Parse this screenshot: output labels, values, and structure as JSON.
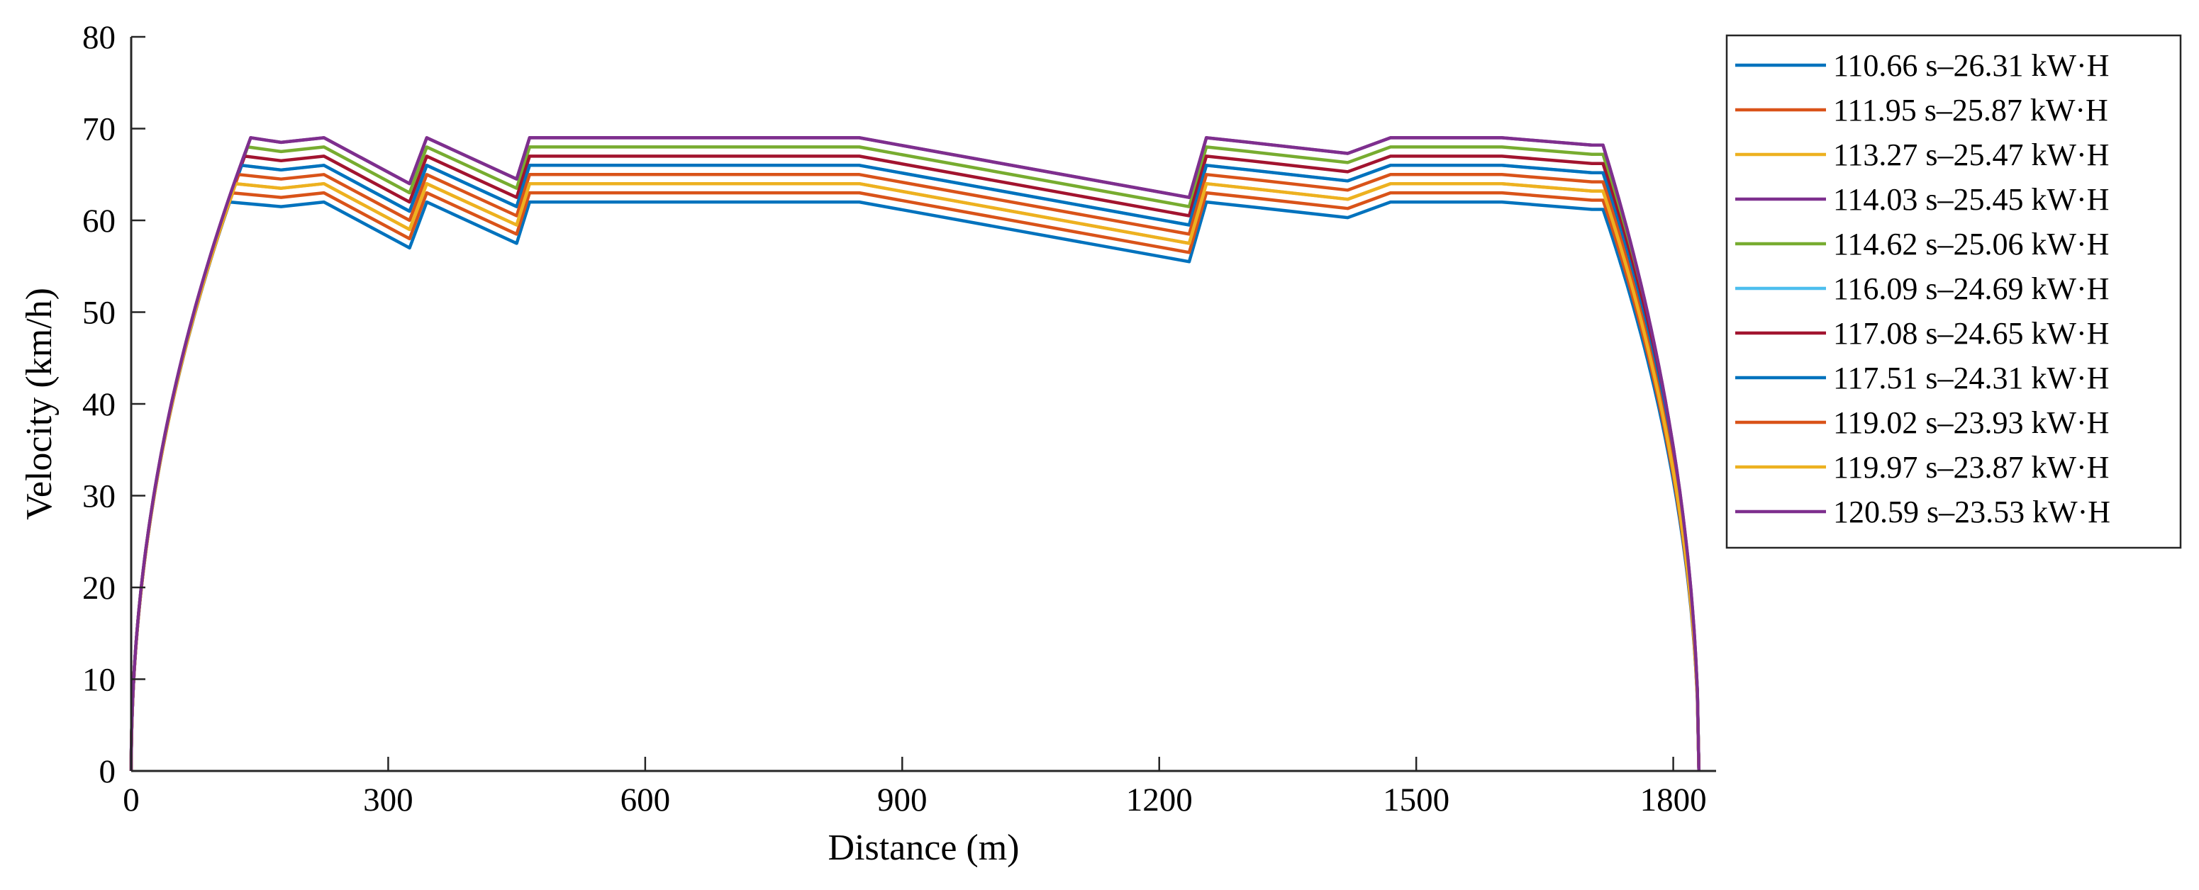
{
  "chart_data": {
    "type": "line",
    "title": "",
    "xlabel": "Distance (m)",
    "ylabel": "Velocity (km/h)",
    "xlim": [
      0,
      1850
    ],
    "ylim": [
      0,
      80
    ],
    "xticks": [
      0,
      300,
      600,
      900,
      1200,
      1500,
      1800
    ],
    "yticks": [
      0,
      10,
      20,
      30,
      40,
      50,
      60,
      70,
      80
    ],
    "xtick_labels": [
      "0",
      "300",
      "600",
      "900",
      "1200",
      "1500",
      "1800"
    ],
    "ytick_labels": [
      "0",
      "10",
      "20",
      "30",
      "40",
      "50",
      "60",
      "70",
      "80"
    ],
    "grid": false,
    "legend_position": "outside-right-top",
    "series": [
      {
        "name": "110.66 s–26.31 kW·H",
        "color": "#0072BD",
        "cruise": 62
      },
      {
        "name": "111.95 s–25.87 kW·H",
        "color": "#D95319",
        "cruise": 63
      },
      {
        "name": "113.27 s–25.47 kW·H",
        "color": "#EDB120",
        "cruise": 64
      },
      {
        "name": "114.03 s–25.45 kW·H",
        "color": "#7E2F8E",
        "cruise": 69
      },
      {
        "name": "114.62 s–25.06 kW·H",
        "color": "#77AC30",
        "cruise": 68
      },
      {
        "name": "116.09 s–24.69 kW·H",
        "color": "#4DBEEE",
        "cruise": 66
      },
      {
        "name": "117.08 s–24.65 kW·H",
        "color": "#A2142F",
        "cruise": 67
      },
      {
        "name": "117.51 s–24.31 kW·H",
        "color": "#0072BD",
        "cruise": 66
      },
      {
        "name": "119.02 s–23.93 kW·H",
        "color": "#D95319",
        "cruise": 65
      },
      {
        "name": "119.97 s–23.87 kW·H",
        "color": "#EDB120",
        "cruise": 64
      },
      {
        "name": "120.59 s–23.53 kW·H",
        "color": "#7E2F8E",
        "cruise": 69
      }
    ],
    "profile_shape": {
      "distance_m": [
        115,
        175,
        225,
        325,
        345,
        450,
        465,
        850,
        1235,
        1255,
        1305,
        1420,
        1470,
        1600,
        1705,
        1718
      ],
      "velocity_offset_kmh": [
        0,
        -0.5,
        0,
        -5,
        0,
        -4.5,
        0,
        0,
        -6.5,
        0,
        -0.5,
        -1.7,
        0,
        0,
        -0.8,
        -0.8
      ]
    },
    "start_distance_m": 0,
    "stop_distance_m": 1830
  }
}
